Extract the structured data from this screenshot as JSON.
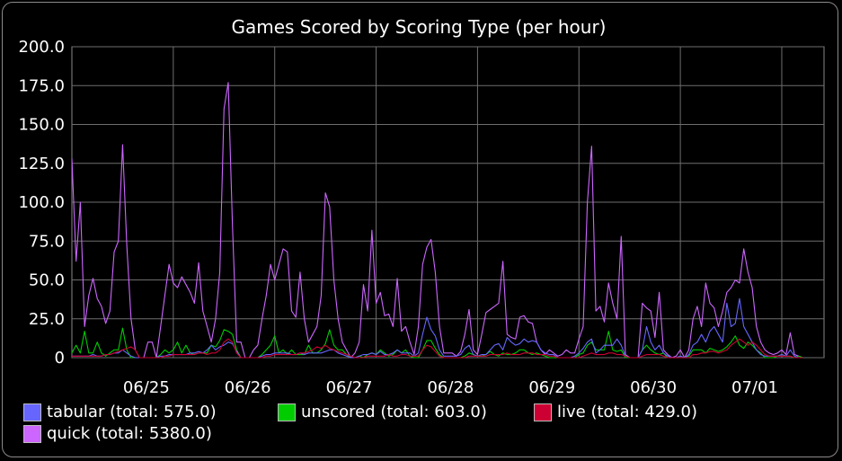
{
  "chart_data": {
    "type": "line",
    "title": "Games Scored by Scoring Type (per hour)",
    "ylim": [
      0,
      200
    ],
    "yticks": [
      "0",
      "25.0",
      "50.0",
      "75.0",
      "100.0",
      "125.0",
      "150.0",
      "175.0",
      "200.0"
    ],
    "xticks": [
      {
        "label": "06/25",
        "x": 24
      },
      {
        "label": "06/26",
        "x": 48
      },
      {
        "label": "06/27",
        "x": 72
      },
      {
        "label": "06/28",
        "x": 96
      },
      {
        "label": "06/29",
        "x": 120
      },
      {
        "label": "06/30",
        "x": 144
      },
      {
        "label": "07/01",
        "x": 168
      }
    ],
    "xlim": [
      0,
      178
    ],
    "x_step_hours": 1,
    "grid": true,
    "legend_position": "bottom",
    "series": [
      {
        "name": "quick",
        "legend": "quick (total: 5380.0)",
        "color": "#cc66ff",
        "values": [
          128,
          62,
          100,
          20,
          40,
          51,
          38,
          33,
          22,
          30,
          68,
          75,
          137,
          72,
          25,
          5,
          0,
          0,
          10,
          10,
          0,
          20,
          40,
          60,
          48,
          45,
          52,
          47,
          42,
          35,
          61,
          30,
          20,
          10,
          25,
          55,
          160,
          177,
          85,
          10,
          10,
          0,
          0,
          5,
          8,
          25,
          40,
          60,
          50,
          60,
          70,
          68,
          30,
          26,
          55,
          25,
          10,
          15,
          20,
          40,
          106,
          97,
          50,
          25,
          10,
          5,
          0,
          3,
          10,
          47,
          30,
          82,
          35,
          42,
          27,
          28,
          20,
          51,
          17,
          20,
          10,
          2,
          20,
          60,
          71,
          76,
          55,
          20,
          3,
          3,
          3,
          1,
          4,
          15,
          31,
          5,
          2,
          15,
          29,
          31,
          33,
          35,
          62,
          15,
          13,
          12,
          26,
          27,
          23,
          22,
          10,
          5,
          2,
          5,
          3,
          1,
          2,
          5,
          3,
          3,
          12,
          20,
          100,
          136,
          30,
          33,
          23,
          48,
          35,
          25,
          78,
          2,
          0,
          0,
          0,
          35,
          32,
          30,
          13,
          42,
          5,
          2,
          0,
          1,
          5,
          0,
          5,
          25,
          33,
          20,
          48,
          35,
          32,
          20,
          30,
          42,
          45,
          50,
          48,
          70,
          55,
          45,
          20,
          10,
          5,
          3,
          2,
          3,
          5,
          2,
          16,
          2,
          1,
          0
        ]
      },
      {
        "name": "unscored",
        "legend": "unscored (total: 603.0)",
        "color": "#00cc00",
        "values": [
          3,
          8,
          3,
          17,
          3,
          3,
          10,
          3,
          1,
          3,
          5,
          5,
          19,
          5,
          0,
          0,
          0,
          0,
          0,
          0,
          0,
          2,
          5,
          3,
          5,
          10,
          3,
          8,
          3,
          2,
          3,
          3,
          3,
          8,
          7,
          11,
          18,
          17,
          15,
          5,
          0,
          0,
          0,
          0,
          0,
          2,
          5,
          8,
          14,
          3,
          5,
          2,
          5,
          2,
          2,
          2,
          8,
          3,
          3,
          5,
          9,
          18,
          8,
          5,
          5,
          2,
          0,
          0,
          1,
          0,
          2,
          3,
          2,
          5,
          3,
          1,
          2,
          5,
          3,
          5,
          1,
          0,
          0,
          5,
          11,
          11,
          6,
          2,
          0,
          0,
          0,
          0,
          0,
          1,
          3,
          2,
          1,
          1,
          2,
          4,
          2,
          1,
          3,
          2,
          2,
          3,
          5,
          5,
          3,
          2,
          3,
          2,
          1,
          0,
          0,
          0,
          0,
          0,
          0,
          0,
          2,
          3,
          8,
          10,
          5,
          5,
          5,
          17,
          5,
          4,
          5,
          0,
          0,
          0,
          0,
          5,
          8,
          5,
          3,
          2,
          3,
          0,
          0,
          0,
          1,
          0,
          1,
          5,
          5,
          5,
          3,
          6,
          5,
          4,
          5,
          7,
          10,
          14,
          8,
          6,
          10,
          8,
          5,
          3,
          0,
          0,
          0,
          1,
          2,
          1,
          1,
          0,
          1,
          0
        ]
      },
      {
        "name": "tabular",
        "legend": "tabular (total: 575.0)",
        "color": "#6666ff",
        "values": [
          1,
          1,
          1,
          1,
          1,
          2,
          1,
          1,
          2,
          2,
          3,
          3,
          5,
          3,
          1,
          0,
          0,
          0,
          0,
          0,
          0,
          1,
          1,
          2,
          2,
          2,
          2,
          2,
          3,
          3,
          4,
          3,
          5,
          8,
          5,
          7,
          8,
          10,
          9,
          4,
          0,
          0,
          0,
          0,
          0,
          1,
          2,
          2,
          3,
          3,
          3,
          3,
          2,
          2,
          3,
          2,
          3,
          3,
          3,
          3,
          4,
          5,
          5,
          3,
          2,
          1,
          0,
          0,
          1,
          2,
          2,
          3,
          2,
          4,
          2,
          2,
          3,
          5,
          3,
          3,
          3,
          1,
          3,
          15,
          26,
          18,
          14,
          5,
          1,
          1,
          1,
          1,
          2,
          6,
          8,
          2,
          1,
          2,
          2,
          5,
          8,
          9,
          5,
          13,
          10,
          8,
          9,
          12,
          10,
          11,
          10,
          5,
          3,
          2,
          2,
          0,
          0,
          0,
          0,
          1,
          3,
          6,
          10,
          12,
          3,
          5,
          8,
          8,
          8,
          12,
          8,
          1,
          0,
          0,
          0,
          5,
          20,
          10,
          5,
          8,
          3,
          1,
          0,
          0,
          1,
          0,
          2,
          8,
          10,
          15,
          10,
          17,
          20,
          15,
          10,
          35,
          20,
          22,
          38,
          20,
          15,
          10,
          5,
          2,
          1,
          1,
          1,
          1,
          2,
          1,
          5,
          1,
          0,
          0
        ]
      },
      {
        "name": "live",
        "legend": "live (total: 429.0)",
        "color": "#cc0033",
        "values": [
          1,
          1,
          1,
          1,
          1,
          1,
          1,
          1,
          2,
          2,
          3,
          4,
          5,
          6,
          7,
          5,
          0,
          0,
          0,
          0,
          0,
          0,
          1,
          1,
          2,
          2,
          2,
          2,
          2,
          2,
          3,
          3,
          2,
          3,
          3,
          5,
          10,
          12,
          10,
          3,
          0,
          0,
          0,
          0,
          0,
          0,
          1,
          1,
          2,
          2,
          2,
          2,
          2,
          2,
          3,
          3,
          4,
          5,
          7,
          6,
          8,
          6,
          5,
          4,
          3,
          2,
          1,
          0,
          0,
          0,
          1,
          1,
          1,
          1,
          1,
          2,
          1,
          1,
          2,
          2,
          1,
          1,
          1,
          5,
          8,
          7,
          4,
          1,
          0,
          0,
          0,
          0,
          0,
          0,
          1,
          1,
          1,
          1,
          1,
          2,
          2,
          2,
          2,
          3,
          2,
          2,
          2,
          3,
          3,
          3,
          2,
          2,
          2,
          1,
          1,
          0,
          0,
          0,
          0,
          0,
          0,
          1,
          2,
          3,
          2,
          2,
          2,
          3,
          3,
          2,
          2,
          1,
          0,
          0,
          0,
          1,
          2,
          2,
          2,
          2,
          1,
          0,
          0,
          0,
          0,
          0,
          0,
          2,
          2,
          3,
          3,
          4,
          4,
          3,
          4,
          5,
          8,
          10,
          12,
          10,
          8,
          10,
          8,
          5,
          2,
          1,
          1,
          1,
          1,
          1,
          1,
          0,
          0,
          0
        ]
      }
    ]
  }
}
